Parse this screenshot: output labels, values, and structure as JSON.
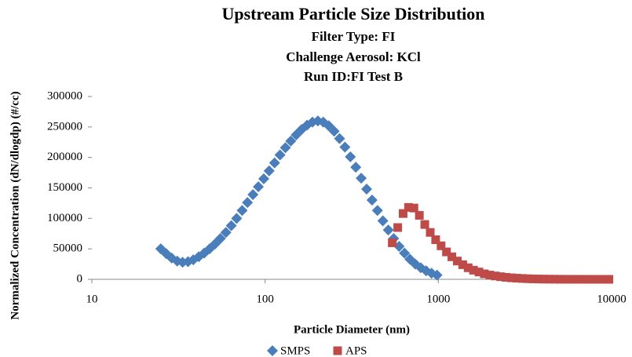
{
  "chart_data": {
    "type": "scatter",
    "title": "Upstream Particle Size Distribution",
    "subtitles": [
      "Filter Type: FI",
      "Challenge Aerosol: KCl",
      "Run ID:FI Test B"
    ],
    "x_label": "Particle Diameter (nm)",
    "y_label": "Normalized Concentration (dN/dlogdp) (#/cc)",
    "xscale": "log",
    "xlim": [
      10,
      10000
    ],
    "xticks": [
      10,
      100,
      1000,
      10000
    ],
    "ylim": [
      0,
      300000
    ],
    "yticks": [
      0,
      50000,
      100000,
      150000,
      200000,
      250000,
      300000
    ],
    "grid": false,
    "legend": "bottom",
    "series": [
      {
        "name": "SMPS",
        "color": "#4a7ebb",
        "marker": "diamond",
        "x": [
          25,
          26.9,
          28.9,
          31.1,
          33.4,
          35.9,
          38.5,
          41.4,
          44.5,
          47.8,
          51.4,
          55.2,
          59.4,
          63.8,
          68.5,
          73.7,
          79.1,
          85.1,
          91.4,
          98.2,
          105.5,
          113.4,
          121.9,
          131,
          140.7,
          151.2,
          162.5,
          174.7,
          187.7,
          201.7,
          216.7,
          232.9,
          250.3,
          269,
          289,
          310.6,
          333.8,
          358.7,
          385.4,
          414.2,
          445.1,
          478.3,
          514,
          552.3,
          593.5,
          637.8,
          685.4,
          736.5,
          791.5,
          850.5,
          914,
          982.2
        ],
        "values": [
          50000,
          42000,
          35000,
          30000,
          28000,
          29000,
          32000,
          37000,
          43000,
          50000,
          58000,
          67000,
          77000,
          88000,
          100000,
          113000,
          126000,
          139000,
          152000,
          165000,
          178000,
          191000,
          204000,
          216000,
          227000,
          237000,
          246000,
          253000,
          258000,
          260000,
          258000,
          252000,
          243000,
          231000,
          217000,
          201000,
          184000,
          166000,
          148000,
          130000,
          113000,
          96000,
          81000,
          67000,
          54000,
          43000,
          33000,
          25000,
          19000,
          14000,
          10000,
          7000
        ]
      },
      {
        "name": "APS",
        "color": "#be4b48",
        "marker": "square",
        "x": [
          542,
          583,
          626,
          673,
          723,
          777,
          835,
          898,
          965,
          1037,
          1114,
          1197,
          1287,
          1383,
          1486,
          1596,
          1715,
          1843,
          1981,
          2129,
          2288,
          2458,
          2642,
          2839,
          3051,
          3278,
          3523,
          3786,
          4068,
          4371,
          4698,
          5048,
          5425,
          5829,
          6264,
          6732,
          7234,
          7773,
          8353,
          8977,
          9647
        ],
        "values": [
          60000,
          85000,
          108000,
          118000,
          117000,
          105000,
          90000,
          77000,
          65000,
          55000,
          45000,
          37000,
          30000,
          24000,
          19000,
          15000,
          12000,
          9000,
          7000,
          5500,
          4300,
          3300,
          2500,
          1900,
          1400,
          1000,
          700,
          500,
          350,
          250,
          170,
          110,
          80,
          50,
          35,
          25,
          15,
          10,
          7,
          5,
          3
        ]
      }
    ]
  }
}
